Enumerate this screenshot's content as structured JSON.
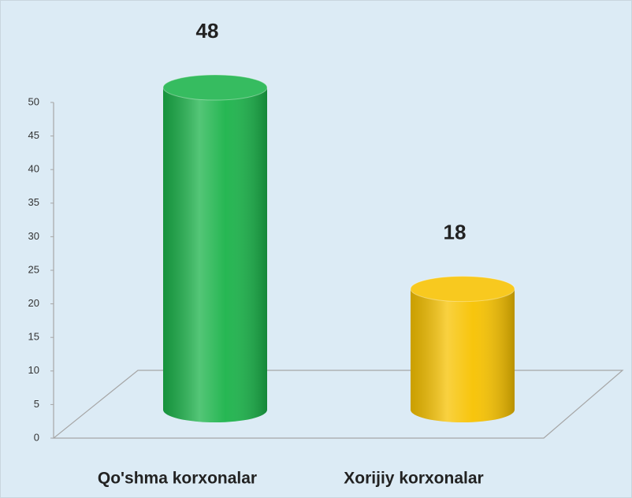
{
  "chart_data": {
    "type": "bar",
    "categories": [
      "Qo'shma korxonalar",
      "Xorijiy korxonalar"
    ],
    "values": [
      48,
      18
    ],
    "colors": [
      "#1bb34a",
      "#f7c200"
    ],
    "ylim": [
      0,
      50
    ],
    "yticks": [
      0,
      5,
      10,
      15,
      20,
      25,
      30,
      35,
      40,
      45,
      50
    ]
  }
}
